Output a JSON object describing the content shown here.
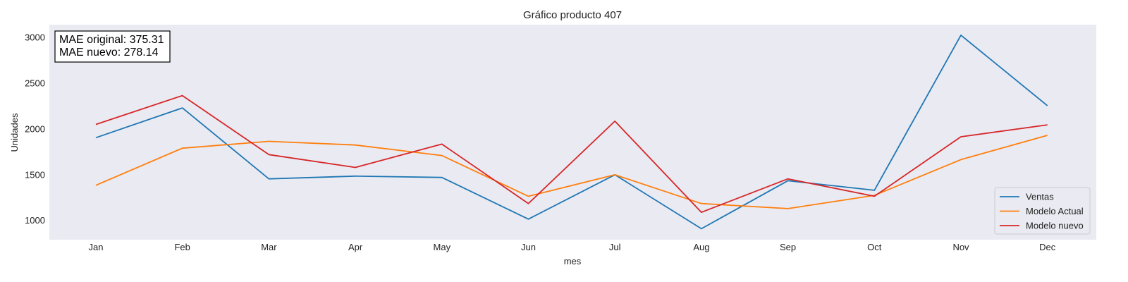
{
  "chart_data": {
    "type": "line",
    "title": "Gráfico producto 407",
    "xlabel": "mes",
    "ylabel": "Unidades",
    "categories": [
      "Jan",
      "Feb",
      "Mar",
      "Apr",
      "May",
      "Jun",
      "Jul",
      "Aug",
      "Sep",
      "Oct",
      "Nov",
      "Dec"
    ],
    "ylim": [
      790,
      3140
    ],
    "yticks": [
      1000,
      1500,
      2000,
      2500,
      3000
    ],
    "grid": false,
    "background": "#eaeaf2",
    "legend_position": "lower-right",
    "annotation": {
      "lines": [
        "MAE original: 375.31",
        "MAE nuevo: 278.14"
      ],
      "position": "top-left"
    },
    "series": [
      {
        "name": "Ventas",
        "color": "#1f77b4",
        "values": [
          1905,
          2230,
          1455,
          1485,
          1470,
          1015,
          1500,
          910,
          1435,
          1330,
          3025,
          2255
        ]
      },
      {
        "name": "Modelo Actual",
        "color": "#ff7f0e",
        "values": [
          1385,
          1790,
          1865,
          1825,
          1710,
          1265,
          1500,
          1185,
          1130,
          1275,
          1665,
          1930
        ]
      },
      {
        "name": "Modelo nuevo",
        "color": "#d62728",
        "values": [
          2050,
          2365,
          1720,
          1580,
          1835,
          1185,
          2085,
          1090,
          1455,
          1265,
          1915,
          2045
        ]
      }
    ]
  }
}
